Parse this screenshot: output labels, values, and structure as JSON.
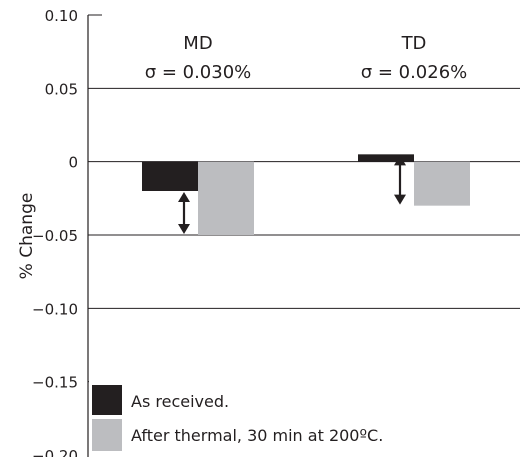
{
  "chart_data": {
    "type": "bar",
    "categories": [
      "MD",
      "TD"
    ],
    "category_annotations": [
      "σ = 0.030%",
      "σ = 0.026%"
    ],
    "series": [
      {
        "name": "As received.",
        "values": [
          -0.02,
          0.005
        ],
        "color": "#231f20"
      },
      {
        "name": "After thermal, 30 min at 200ºC.",
        "values": [
          -0.05,
          -0.03
        ],
        "color": "#bcbdc0"
      }
    ],
    "ylabel": "% Change",
    "xlabel": "",
    "ylim": [
      -0.2,
      0.1
    ],
    "yticks": [
      0.1,
      0.05,
      0,
      -0.05,
      -0.1,
      -0.15,
      -0.2
    ],
    "ytick_labels": [
      "0.10",
      "0.05",
      "0",
      "−0.05",
      "−0.10",
      "−0.15",
      "−0.20"
    ],
    "grid": "horizontal",
    "legend_position": "bottom-left",
    "difference_arrows": true
  }
}
